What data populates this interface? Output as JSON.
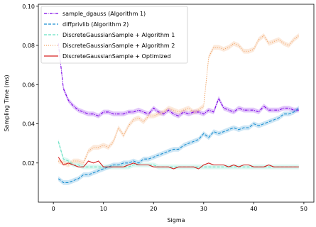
{
  "chart_data": {
    "type": "line",
    "xlabel": "Sigma",
    "ylabel": "Sampling Time (ms)",
    "xlim": [
      -3,
      52
    ],
    "ylim": [
      0.0,
      0.101
    ],
    "xticks": [
      "0",
      "10",
      "20",
      "30",
      "40",
      "50"
    ],
    "yticks": [
      "0.02",
      "0.04",
      "0.06",
      "0.08",
      "0.10"
    ],
    "grid": false,
    "legend_position": "top-left",
    "series": [
      {
        "name": "sample_dgauss (Algorithm 1)",
        "color": "#7b00e6",
        "style": "dashdot",
        "band": true,
        "x": [
          1,
          2,
          3,
          4,
          5,
          6,
          7,
          8,
          9,
          10,
          11,
          12,
          13,
          14,
          15,
          16,
          17,
          18,
          19,
          20,
          21,
          22,
          23,
          24,
          25,
          26,
          27,
          28,
          29,
          30,
          31,
          32,
          33,
          34,
          35,
          36,
          37,
          38,
          39,
          40,
          41,
          42,
          43,
          44,
          45,
          46,
          47,
          48,
          49
        ],
        "y": [
          0.081,
          0.058,
          0.052,
          0.049,
          0.047,
          0.046,
          0.045,
          0.045,
          0.044,
          0.046,
          0.046,
          0.045,
          0.045,
          0.045,
          0.046,
          0.046,
          0.047,
          0.046,
          0.045,
          0.048,
          0.046,
          0.045,
          0.047,
          0.045,
          0.044,
          0.046,
          0.045,
          0.046,
          0.046,
          0.045,
          0.047,
          0.046,
          0.053,
          0.048,
          0.047,
          0.046,
          0.048,
          0.047,
          0.047,
          0.047,
          0.046,
          0.049,
          0.047,
          0.047,
          0.047,
          0.048,
          0.048,
          0.047,
          0.047
        ]
      },
      {
        "name": "diffprivlib (Algorithm 2)",
        "color": "#1a8fd0",
        "style": "dashed",
        "band": true,
        "x": [
          1,
          2,
          3,
          4,
          5,
          6,
          7,
          8,
          9,
          10,
          11,
          12,
          13,
          14,
          15,
          16,
          17,
          18,
          19,
          20,
          21,
          22,
          23,
          24,
          25,
          26,
          27,
          28,
          29,
          30,
          31,
          32,
          33,
          34,
          35,
          36,
          37,
          38,
          39,
          40,
          41,
          42,
          43,
          44,
          45,
          46,
          47,
          48,
          49
        ],
        "y": [
          0.012,
          0.01,
          0.01,
          0.011,
          0.012,
          0.014,
          0.014,
          0.015,
          0.016,
          0.017,
          0.018,
          0.019,
          0.019,
          0.02,
          0.02,
          0.021,
          0.02,
          0.022,
          0.022,
          0.023,
          0.024,
          0.025,
          0.026,
          0.027,
          0.027,
          0.029,
          0.03,
          0.031,
          0.032,
          0.035,
          0.033,
          0.036,
          0.035,
          0.036,
          0.037,
          0.038,
          0.037,
          0.038,
          0.038,
          0.04,
          0.039,
          0.04,
          0.041,
          0.042,
          0.043,
          0.045,
          0.045,
          0.046,
          0.048
        ]
      },
      {
        "name": "DiscreteGaussianSample + Algorithm 1",
        "color": "#66e0c2",
        "style": "dashed",
        "band": true,
        "x": [
          1,
          2,
          3,
          4,
          5,
          6,
          7,
          8,
          9,
          10,
          11,
          12,
          13,
          14,
          15,
          16,
          17,
          18,
          19,
          20,
          21,
          22,
          23,
          24,
          25,
          26,
          27,
          28,
          29,
          30,
          31,
          32,
          33,
          34,
          35,
          36,
          37,
          38,
          39,
          40,
          41,
          42,
          43,
          44,
          45,
          46,
          47,
          48,
          49
        ],
        "y": [
          0.031,
          0.022,
          0.021,
          0.019,
          0.019,
          0.018,
          0.018,
          0.018,
          0.018,
          0.018,
          0.018,
          0.018,
          0.018,
          0.018,
          0.018,
          0.019,
          0.019,
          0.019,
          0.019,
          0.019,
          0.018,
          0.018,
          0.018,
          0.018,
          0.018,
          0.018,
          0.018,
          0.018,
          0.018,
          0.018,
          0.018,
          0.018,
          0.018,
          0.018,
          0.018,
          0.018,
          0.018,
          0.018,
          0.018,
          0.018,
          0.018,
          0.018,
          0.018,
          0.018,
          0.018,
          0.018,
          0.018,
          0.018,
          0.018
        ]
      },
      {
        "name": "DiscreteGaussianSample + Algorithm 2",
        "color": "#f0a060",
        "style": "dotted",
        "band": true,
        "x": [
          1,
          2,
          3,
          4,
          5,
          6,
          7,
          8,
          9,
          10,
          11,
          12,
          13,
          14,
          15,
          16,
          17,
          18,
          19,
          20,
          21,
          22,
          23,
          24,
          25,
          26,
          27,
          28,
          29,
          30,
          31,
          32,
          33,
          34,
          35,
          36,
          37,
          38,
          39,
          40,
          41,
          42,
          43,
          44,
          45,
          46,
          47,
          48,
          49
        ],
        "y": [
          0.021,
          0.02,
          0.019,
          0.021,
          0.021,
          0.02,
          0.026,
          0.028,
          0.028,
          0.029,
          0.028,
          0.031,
          0.038,
          0.034,
          0.039,
          0.042,
          0.043,
          0.041,
          0.044,
          0.044,
          0.045,
          0.046,
          0.048,
          0.047,
          0.046,
          0.047,
          0.048,
          0.046,
          0.047,
          0.049,
          0.074,
          0.079,
          0.079,
          0.078,
          0.079,
          0.081,
          0.08,
          0.077,
          0.077,
          0.078,
          0.083,
          0.085,
          0.081,
          0.082,
          0.083,
          0.081,
          0.08,
          0.083,
          0.085
        ]
      },
      {
        "name": "DiscreteGaussianSample + Optimized",
        "color": "#d62020",
        "style": "solid",
        "band": false,
        "x": [
          1,
          2,
          3,
          4,
          5,
          6,
          7,
          8,
          9,
          10,
          11,
          12,
          13,
          14,
          15,
          16,
          17,
          18,
          19,
          20,
          21,
          22,
          23,
          24,
          25,
          26,
          27,
          28,
          29,
          30,
          31,
          32,
          33,
          34,
          35,
          36,
          37,
          38,
          39,
          40,
          41,
          42,
          43,
          44,
          45,
          46,
          47,
          48,
          49
        ],
        "y": [
          0.023,
          0.019,
          0.02,
          0.019,
          0.018,
          0.018,
          0.021,
          0.02,
          0.021,
          0.018,
          0.018,
          0.018,
          0.018,
          0.018,
          0.019,
          0.02,
          0.019,
          0.019,
          0.019,
          0.018,
          0.018,
          0.018,
          0.018,
          0.017,
          0.018,
          0.018,
          0.018,
          0.018,
          0.017,
          0.019,
          0.02,
          0.019,
          0.019,
          0.019,
          0.018,
          0.019,
          0.018,
          0.019,
          0.019,
          0.018,
          0.018,
          0.018,
          0.019,
          0.018,
          0.018,
          0.018,
          0.018,
          0.018,
          0.018
        ]
      }
    ]
  }
}
